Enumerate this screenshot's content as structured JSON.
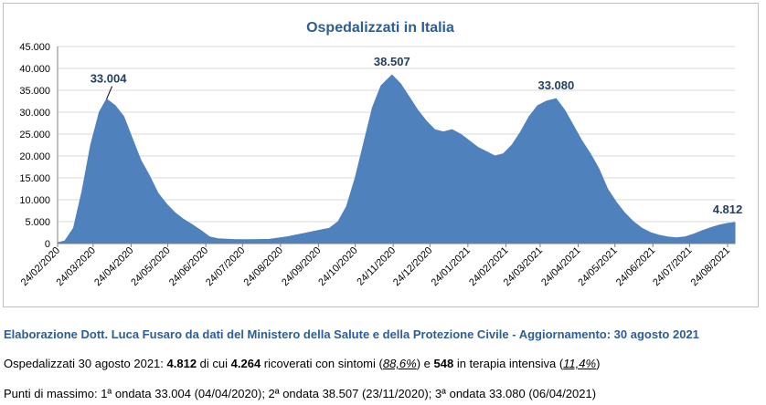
{
  "chart_data": {
    "type": "area",
    "title": "Ospedalizzati in Italia",
    "xlabel": "",
    "ylabel": "",
    "ylim": [
      0,
      45000
    ],
    "yticks": [
      "0",
      "5.000",
      "10.000",
      "15.000",
      "20.000",
      "25.000",
      "30.000",
      "35.000",
      "40.000",
      "45.000"
    ],
    "xticks": [
      "24/02/2020",
      "24/03/2020",
      "24/04/2020",
      "24/05/2020",
      "24/06/2020",
      "24/07/2020",
      "24/08/2020",
      "24/09/2020",
      "24/10/2020",
      "24/11/2020",
      "24/12/2020",
      "24/01/2021",
      "24/02/2021",
      "24/03/2021",
      "24/04/2021",
      "24/05/2021",
      "24/06/2021",
      "24/07/2021",
      "24/08/2021"
    ],
    "grid": true,
    "color": "#4f81bd",
    "annotations": [
      {
        "text": "33.004",
        "date": "2020-04-04",
        "value": 33004
      },
      {
        "text": "38.507",
        "date": "2020-11-23",
        "value": 38507
      },
      {
        "text": "33.080",
        "date": "2021-04-06",
        "value": 33080
      },
      {
        "text": "4.812",
        "date": "2021-08-30",
        "value": 4812
      }
    ],
    "series": [
      {
        "points": [
          [
            "2020-02-24",
            150
          ],
          [
            "2020-03-01",
            600
          ],
          [
            "2020-03-08",
            3500
          ],
          [
            "2020-03-15",
            12000
          ],
          [
            "2020-03-22",
            22500
          ],
          [
            "2020-03-29",
            30000
          ],
          [
            "2020-04-04",
            33004
          ],
          [
            "2020-04-11",
            31500
          ],
          [
            "2020-04-18",
            29000
          ],
          [
            "2020-04-25",
            24000
          ],
          [
            "2020-05-02",
            19000
          ],
          [
            "2020-05-09",
            15500
          ],
          [
            "2020-05-16",
            11500
          ],
          [
            "2020-05-23",
            9000
          ],
          [
            "2020-05-30",
            7000
          ],
          [
            "2020-06-06",
            5500
          ],
          [
            "2020-06-13",
            4300
          ],
          [
            "2020-06-20",
            3000
          ],
          [
            "2020-06-27",
            1500
          ],
          [
            "2020-07-04",
            1100
          ],
          [
            "2020-07-18",
            900
          ],
          [
            "2020-08-01",
            900
          ],
          [
            "2020-08-15",
            950
          ],
          [
            "2020-08-29",
            1500
          ],
          [
            "2020-09-12",
            2300
          ],
          [
            "2020-09-26",
            3100
          ],
          [
            "2020-10-03",
            3500
          ],
          [
            "2020-10-10",
            5000
          ],
          [
            "2020-10-17",
            8500
          ],
          [
            "2020-10-24",
            15000
          ],
          [
            "2020-10-31",
            23000
          ],
          [
            "2020-11-07",
            31000
          ],
          [
            "2020-11-14",
            36000
          ],
          [
            "2020-11-23",
            38507
          ],
          [
            "2020-11-30",
            36500
          ],
          [
            "2020-12-07",
            33500
          ],
          [
            "2020-12-14",
            30500
          ],
          [
            "2020-12-21",
            28000
          ],
          [
            "2020-12-28",
            26000
          ],
          [
            "2021-01-04",
            25500
          ],
          [
            "2021-01-11",
            26000
          ],
          [
            "2021-01-18",
            25000
          ],
          [
            "2021-01-25",
            23500
          ],
          [
            "2021-02-01",
            22000
          ],
          [
            "2021-02-08",
            21000
          ],
          [
            "2021-02-15",
            20000
          ],
          [
            "2021-02-22",
            20500
          ],
          [
            "2021-03-01",
            22500
          ],
          [
            "2021-03-08",
            25500
          ],
          [
            "2021-03-15",
            29000
          ],
          [
            "2021-03-22",
            31500
          ],
          [
            "2021-03-29",
            32500
          ],
          [
            "2021-04-06",
            33080
          ],
          [
            "2021-04-13",
            30500
          ],
          [
            "2021-04-20",
            27000
          ],
          [
            "2021-04-27",
            23500
          ],
          [
            "2021-05-04",
            20500
          ],
          [
            "2021-05-11",
            17000
          ],
          [
            "2021-05-18",
            12500
          ],
          [
            "2021-05-25",
            9500
          ],
          [
            "2021-06-01",
            7000
          ],
          [
            "2021-06-08",
            5000
          ],
          [
            "2021-06-15",
            3500
          ],
          [
            "2021-06-22",
            2500
          ],
          [
            "2021-06-29",
            1900
          ],
          [
            "2021-07-06",
            1500
          ],
          [
            "2021-07-13",
            1300
          ],
          [
            "2021-07-20",
            1500
          ],
          [
            "2021-07-27",
            2100
          ],
          [
            "2021-08-03",
            2900
          ],
          [
            "2021-08-10",
            3600
          ],
          [
            "2021-08-17",
            4200
          ],
          [
            "2021-08-24",
            4600
          ],
          [
            "2021-08-30",
            4812
          ]
        ]
      }
    ]
  },
  "footer": {
    "title": "Elaborazione Dott. Luca Fusaro da dati del Ministero della Salute e della Protezione Civile - Aggiornamento: 30 agosto 2021",
    "line1": {
      "prefix": "Ospedalizzati 30 agosto 2021: ",
      "total": "4.812",
      "mid1": " di cui ",
      "symptoms": "4.264",
      "mid2": " ricoverati con sintomi (",
      "symptoms_pct": "88,6%",
      "mid3": ") e ",
      "icu": "548",
      "mid4": " in terapia intensiva (",
      "icu_pct": "11,4%",
      "suffix": ")"
    },
    "line2": "Punti di massimo: 1ª ondata 33.004 (04/04/2020); 2ª ondata 38.507 (23/11/2020); 3ª ondata 33.080 (06/04/2021)"
  }
}
